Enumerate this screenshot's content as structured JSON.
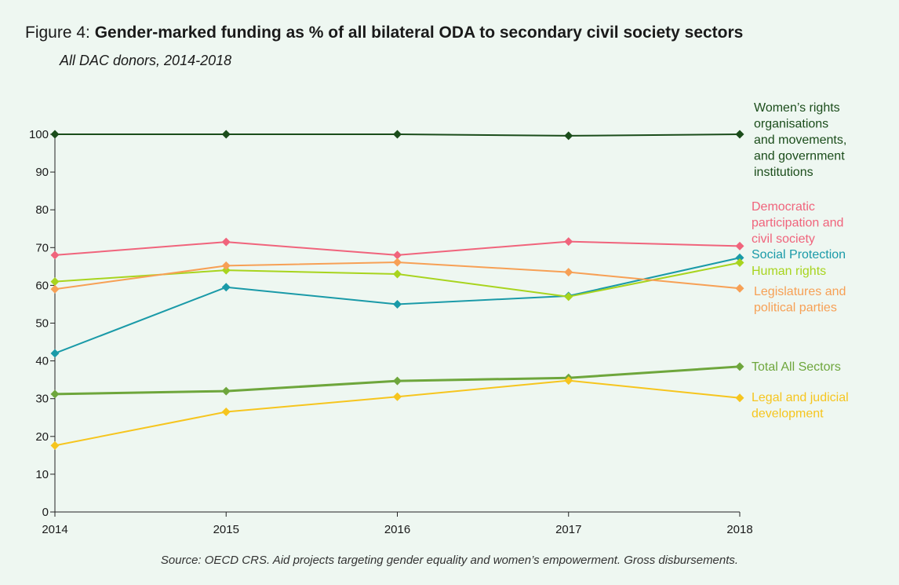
{
  "header": {
    "figure_label": "Figure 4:",
    "title": "Gender-marked funding as % of all bilateral ODA to secondary civil society sectors",
    "subtitle": "All DAC donors, 2014-2018"
  },
  "footer": {
    "source": "Source: OECD CRS. Aid projects targeting gender equality and women’s empowerment. Gross disbursements."
  },
  "chart_data": {
    "type": "line",
    "title": "Gender-marked funding as % of all bilateral ODA to secondary civil society sectors",
    "subtitle": "All DAC donors, 2014-2018",
    "xlabel": "",
    "ylabel": "",
    "x": [
      "2014",
      "2015",
      "2016",
      "2017",
      "2018"
    ],
    "ylim": [
      0,
      100
    ],
    "yticks": [
      0,
      10,
      20,
      30,
      40,
      50,
      60,
      70,
      80,
      90,
      100
    ],
    "grid": false,
    "legend_placement": "right (direct labels)",
    "marker": "diamond",
    "series": [
      {
        "name": "Women's rights organisations and movements, and government institutions",
        "label_lines": [
          "Women’s rights",
          "organisations",
          "and movements,",
          "and government",
          "institutions"
        ],
        "color": "#1b4d1b",
        "width": 2,
        "values": [
          100,
          100,
          100,
          99.6,
          100
        ]
      },
      {
        "name": "Democratic participation and civil society",
        "label_lines": [
          "Democratic",
          "participation and",
          "civil society"
        ],
        "color": "#f0647c",
        "width": 2,
        "values": [
          68,
          71.5,
          68,
          71.6,
          70.4
        ]
      },
      {
        "name": "Social Protection",
        "label_lines": [
          "Social Protection"
        ],
        "color": "#1a9aa8",
        "width": 2,
        "values": [
          42,
          59.5,
          55,
          57.2,
          67.3
        ]
      },
      {
        "name": "Human rights",
        "label_lines": [
          "Human rights"
        ],
        "color": "#a8d41e",
        "width": 2,
        "values": [
          61,
          64,
          63,
          57,
          66
        ]
      },
      {
        "name": "Legislatures and political parties",
        "label_lines": [
          "Legislatures and",
          "political parties"
        ],
        "color": "#f7a055",
        "width": 2,
        "values": [
          59,
          65.2,
          66.1,
          63.5,
          59.2
        ]
      },
      {
        "name": "Total All Sectors",
        "label_lines": [
          "Total All Sectors"
        ],
        "color": "#6ea63c",
        "width": 3,
        "values": [
          31.2,
          32,
          34.7,
          35.5,
          38.5
        ]
      },
      {
        "name": "Legal and judicial development",
        "label_lines": [
          "Legal and judicial",
          "development"
        ],
        "color": "#f6c51e",
        "width": 2,
        "values": [
          17.6,
          26.5,
          30.5,
          34.8,
          30.2
        ]
      }
    ]
  }
}
